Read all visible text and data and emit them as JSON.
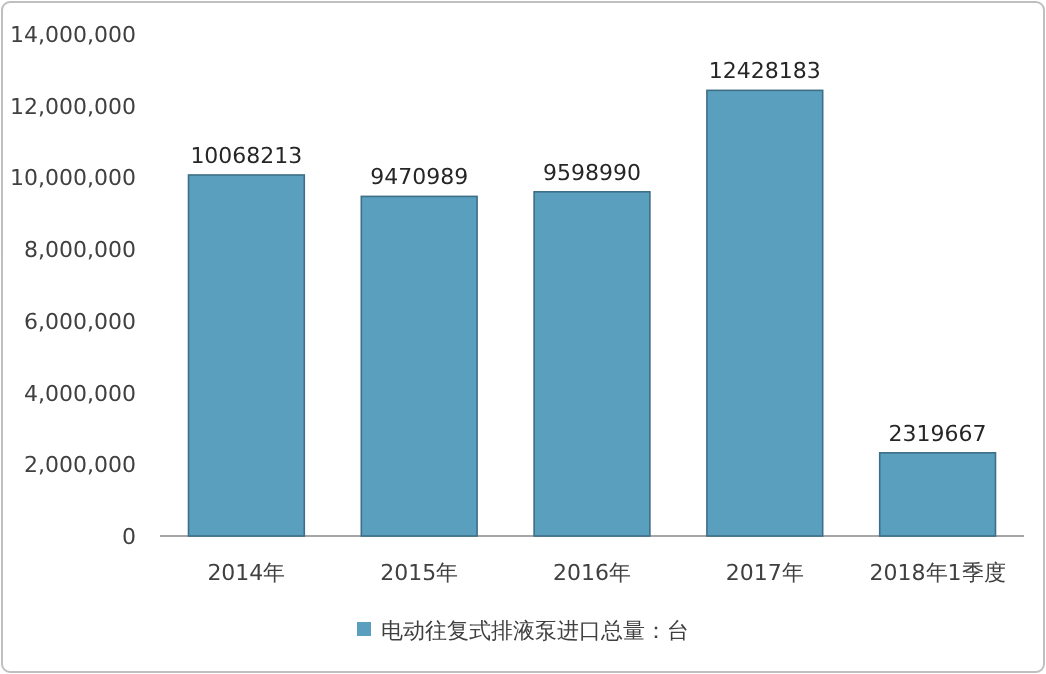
{
  "chart_data": {
    "type": "bar",
    "categories": [
      "2014年",
      "2015年",
      "2016年",
      "2017年",
      "2018年1季度"
    ],
    "series": [
      {
        "name": "电动往复式排液泵进口总量：台",
        "color": "#5b9fbf",
        "values": [
          10068213,
          9470989,
          9598990,
          12428183,
          2319667
        ]
      }
    ],
    "ylim": [
      0,
      14000000
    ],
    "yticks": [
      {
        "value": 0,
        "label": "0"
      },
      {
        "value": 2000000,
        "label": "2,000,000"
      },
      {
        "value": 4000000,
        "label": "4,000,000"
      },
      {
        "value": 6000000,
        "label": "6,000,000"
      },
      {
        "value": 8000000,
        "label": "8,000,000"
      },
      {
        "value": 10000000,
        "label": "10,000,000"
      },
      {
        "value": 12000000,
        "label": "12,000,000"
      },
      {
        "value": 14000000,
        "label": "14,000,000"
      }
    ],
    "data_labels": true,
    "legend": "bottom"
  }
}
